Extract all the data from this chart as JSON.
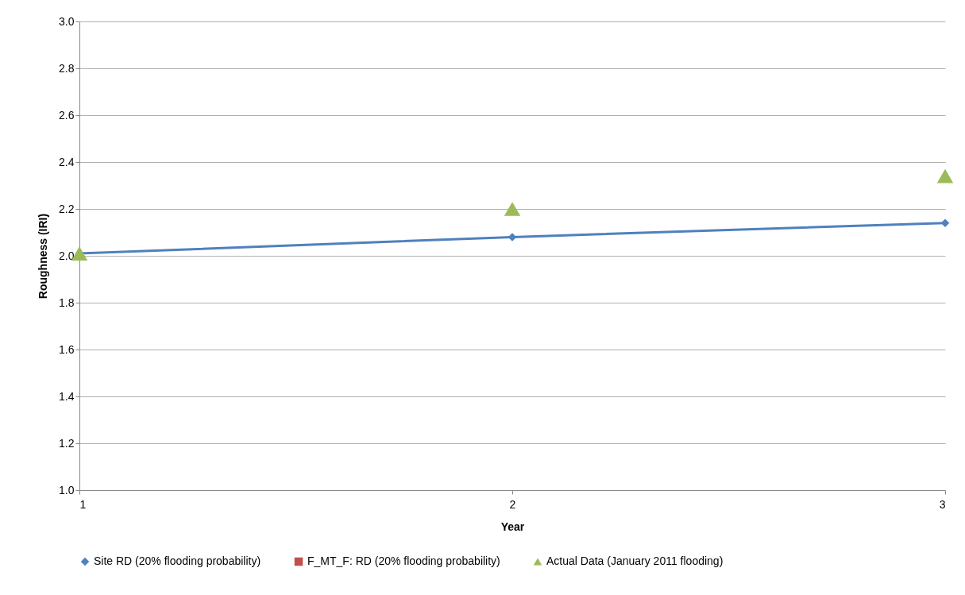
{
  "chart_data": {
    "type": "line",
    "xlabel": "Year",
    "ylabel": "Roughness (IRI)",
    "x": [
      1,
      2,
      3
    ],
    "xlim": [
      1,
      3
    ],
    "xticks": [
      1,
      2,
      3
    ],
    "ylim": [
      1,
      3
    ],
    "yticks": [
      {
        "value": 1,
        "label": "1.0"
      },
      {
        "value": 1.2,
        "label": "1.2"
      },
      {
        "value": 1.4,
        "label": "1.4"
      },
      {
        "value": 1.6,
        "label": "1.6"
      },
      {
        "value": 1.8,
        "label": "1.8"
      },
      {
        "value": 2,
        "label": "2.0"
      },
      {
        "value": 2.2,
        "label": "2.2"
      },
      {
        "value": 2.4,
        "label": "2.4"
      },
      {
        "value": 2.6,
        "label": "2.6"
      },
      {
        "value": 2.8,
        "label": "2.8"
      },
      {
        "value": 3,
        "label": "3.0"
      }
    ],
    "grid": "y",
    "legend": "bottom",
    "series": [
      {
        "name": "Site RD (20% flooding probability)",
        "color": "#4f81bd",
        "marker": "diamond",
        "values": [
          2.01,
          2.08,
          2.14
        ]
      },
      {
        "name": "F_MT_F: RD (20% flooding probability)",
        "color": "#c0504d",
        "marker": "square",
        "values": [
          null,
          null,
          null
        ]
      },
      {
        "name": "Actual Data (January 2011 flooding)",
        "type": "scatter",
        "color": "#9bbb59",
        "marker": "triangle",
        "values": [
          2.01,
          2.2,
          2.34
        ]
      }
    ]
  }
}
